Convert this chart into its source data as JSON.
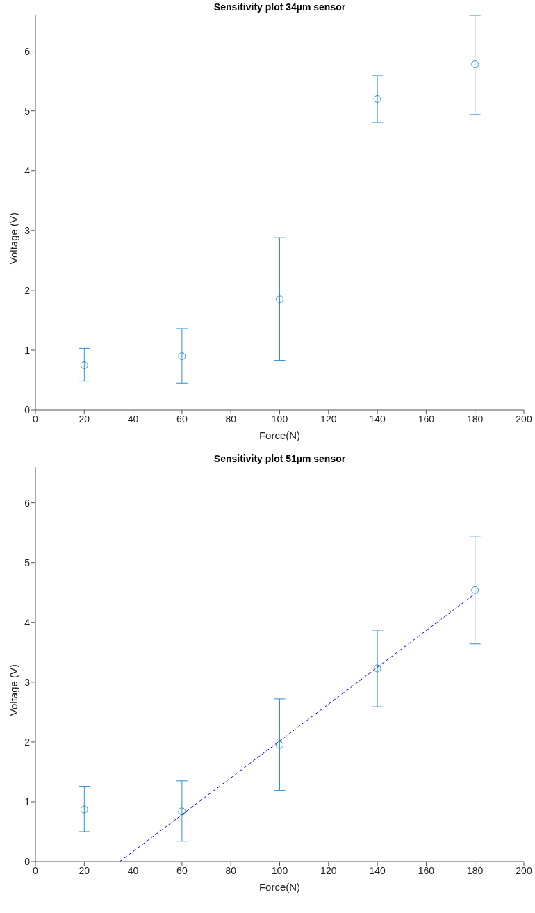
{
  "chart_data": [
    {
      "type": "scatter",
      "title": "Sensitivity plot 34µm sensor",
      "xlabel": "Force(N)",
      "ylabel": "Voltage (V)",
      "xlim": [
        0,
        200
      ],
      "xticks": [
        0,
        20,
        40,
        60,
        80,
        100,
        120,
        140,
        160,
        180,
        200
      ],
      "ylim": [
        0,
        6.6
      ],
      "yticks": [
        0,
        1,
        2,
        3,
        4,
        5,
        6
      ],
      "grid": false,
      "marker": "circle",
      "series": [
        {
          "color": "#2f8fd8",
          "x": [
            20,
            60,
            100,
            140,
            180
          ],
          "values": [
            0.75,
            0.9,
            1.85,
            5.2,
            5.78
          ],
          "errors": [
            [
              0.48,
              1.03
            ],
            [
              0.45,
              1.36
            ],
            [
              0.83,
              2.88
            ],
            [
              4.81,
              5.59
            ],
            [
              4.94,
              6.6
            ]
          ]
        }
      ]
    },
    {
      "type": "scatter",
      "title": "Sensitivity plot 51µm sensor",
      "xlabel": "Force(N)",
      "ylabel": "Voltage (V)",
      "xlim": [
        0,
        200
      ],
      "xticks": [
        0,
        20,
        40,
        60,
        80,
        100,
        120,
        140,
        160,
        180,
        200
      ],
      "ylim": [
        0,
        6.6
      ],
      "yticks": [
        0,
        1,
        2,
        3,
        4,
        5,
        6
      ],
      "grid": false,
      "marker": "circle",
      "series": [
        {
          "color": "#2f8fd8",
          "x": [
            20,
            60,
            100,
            140,
            180
          ],
          "values": [
            0.87,
            0.84,
            1.95,
            3.23,
            4.54
          ],
          "errors": [
            [
              0.5,
              1.26
            ],
            [
              0.34,
              1.35
            ],
            [
              1.19,
              2.72
            ],
            [
              2.59,
              3.87
            ],
            [
              3.64,
              5.44
            ]
          ]
        },
        {
          "type": "line",
          "color": "#0000ff",
          "line_style": "dashed",
          "marker": "none",
          "x": [
            34.5,
            180
          ],
          "values": [
            0,
            4.48
          ]
        }
      ]
    }
  ]
}
